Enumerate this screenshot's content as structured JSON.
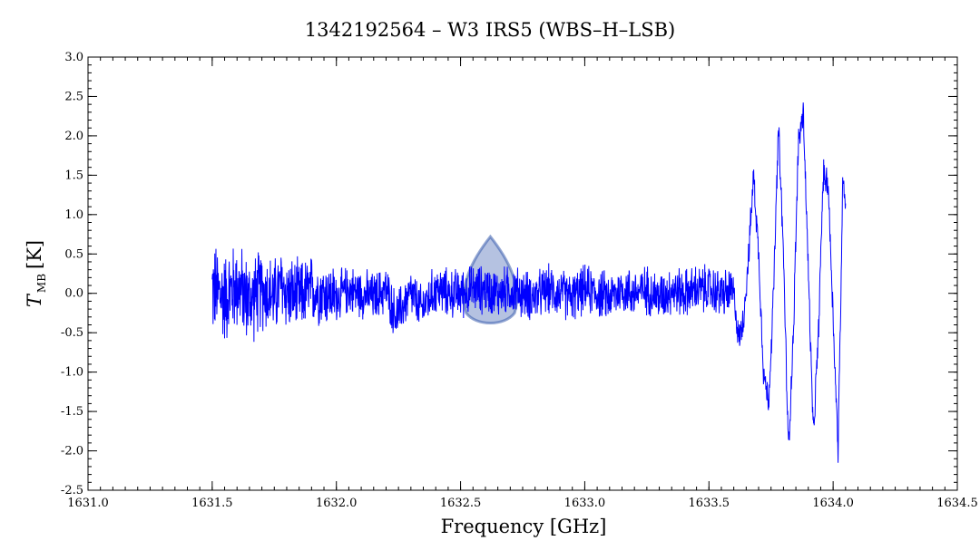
{
  "chart_data": {
    "type": "line",
    "title": "1342192564 – W3 IRS5 (WBS–H–LSB)",
    "xlabel": "Frequency [GHz]",
    "ylabel": {
      "main": "T",
      "sub": "MB",
      "unit": "[K]"
    },
    "xlim": [
      1631.0,
      1634.5
    ],
    "ylim": [
      -2.5,
      3.0
    ],
    "x_ticks": [
      1631.0,
      1631.5,
      1632.0,
      1632.5,
      1633.0,
      1633.5,
      1634.0,
      1634.5
    ],
    "x_tick_labels": [
      "1631.0",
      "1631.5",
      "1632.0",
      "1632.5",
      "1633.0",
      "1633.5",
      "1634.0",
      "1634.5"
    ],
    "y_ticks": [
      -2.5,
      -2.0,
      -1.5,
      -1.0,
      -0.5,
      0.0,
      0.5,
      1.0,
      1.5,
      2.0,
      2.5,
      3.0
    ],
    "y_tick_labels": [
      "-2.5",
      "-2.0",
      "-1.5",
      "-1.0",
      "-0.5",
      "0.0",
      "0.5",
      "1.0",
      "1.5",
      "2.0",
      "2.5",
      "3.0"
    ],
    "grid": false,
    "series": [
      {
        "color": "#0000ff",
        "x": [
          1631.5,
          1631.55,
          1631.6,
          1631.65,
          1631.7,
          1631.75,
          1631.78,
          1631.8,
          1631.85,
          1631.9,
          1631.95,
          1632.0,
          1632.05,
          1632.1,
          1632.15,
          1632.2,
          1632.24,
          1632.3,
          1632.34,
          1632.4,
          1632.45,
          1632.5,
          1632.55,
          1632.6,
          1632.65,
          1632.7,
          1632.75,
          1632.8,
          1632.85,
          1632.9,
          1632.95,
          1633.0,
          1633.05,
          1633.1,
          1633.15,
          1633.2,
          1633.25,
          1633.3,
          1633.35,
          1633.4,
          1633.45,
          1633.5,
          1633.55,
          1633.6,
          1633.62,
          1633.64,
          1633.66,
          1633.68,
          1633.7,
          1633.72,
          1633.74,
          1633.76,
          1633.78,
          1633.8,
          1633.82,
          1633.84,
          1633.86,
          1633.88,
          1633.9,
          1633.92,
          1633.94,
          1633.96,
          1633.98,
          1634.0,
          1634.02,
          1634.04,
          1634.05
        ],
        "y": [
          0.05,
          -0.05,
          0.1,
          -0.1,
          0.05,
          -0.05,
          0.1,
          0.0,
          -0.05,
          0.05,
          0.0,
          -0.05,
          0.05,
          0.0,
          -0.05,
          0.05,
          -0.3,
          0.0,
          -0.2,
          0.05,
          0.0,
          0.0,
          0.05,
          0.05,
          0.0,
          0.05,
          0.0,
          -0.05,
          0.05,
          0.0,
          -0.05,
          0.05,
          0.0,
          -0.05,
          0.05,
          0.0,
          0.05,
          -0.05,
          0.05,
          0.0,
          0.05,
          0.05,
          0.0,
          0.0,
          -0.6,
          -0.3,
          0.5,
          1.5,
          0.5,
          -1.0,
          -1.4,
          0.0,
          2.1,
          0.5,
          -2.0,
          -0.5,
          1.9,
          2.3,
          0.3,
          -1.8,
          -0.6,
          1.5,
          1.4,
          -0.3,
          -2.0,
          1.6,
          1.1
        ]
      }
    ],
    "annotations": [
      {
        "type": "shaded-drop",
        "x_center": 1632.62,
        "x_half_width": 0.13,
        "y_top": 0.72,
        "y_bottom": -0.42,
        "color": "#2a4fa8"
      }
    ]
  }
}
